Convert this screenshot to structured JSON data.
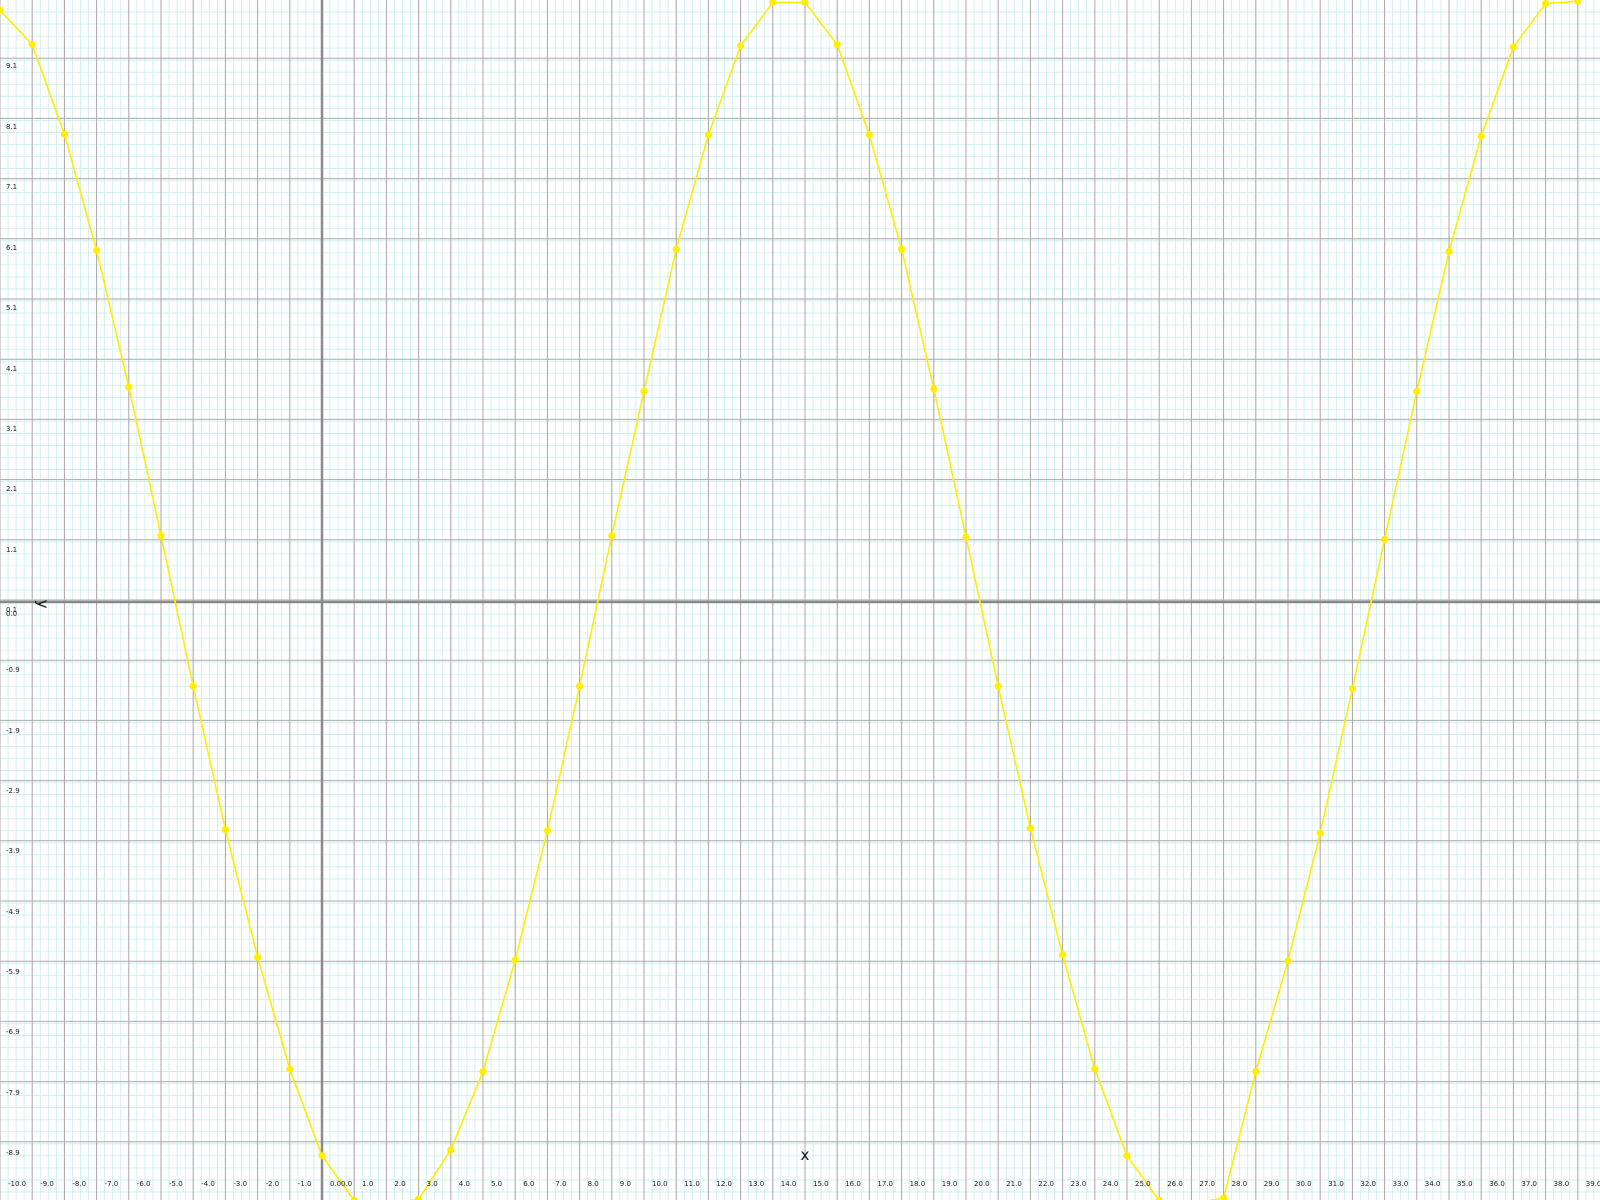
{
  "chart_data": {
    "type": "line",
    "xlabel": "x",
    "ylabel": "y",
    "xlim": [
      -10,
      40
    ],
    "ylim": [
      -10,
      10
    ],
    "grid": true,
    "x_tick_labels": [
      "-10.0",
      "-9.0",
      "-8.0",
      "-7.0",
      "-6.0",
      "-5.0",
      "-4.0",
      "-3.0",
      "-2.0",
      "-1.0",
      "0.0",
      "0.0",
      "1.0",
      "2.0",
      "3.0",
      "4.0",
      "5.0",
      "6.0",
      "7.0",
      "8.0",
      "9.0",
      "10.0",
      "11.0",
      "12.0",
      "13.0",
      "14.0",
      "15.0",
      "16.0",
      "17.0",
      "18.0",
      "19.0",
      "20.0",
      "21.0",
      "22.0",
      "23.0",
      "24.0",
      "25.0",
      "26.0",
      "27.0",
      "28.0",
      "29.0",
      "30.0",
      "31.0",
      "32.0",
      "33.0",
      "34.0",
      "35.0",
      "36.0",
      "37.0",
      "38.0",
      "39.0"
    ],
    "y_tick_labels": [
      "9.1",
      "8.1",
      "7.1",
      "6.1",
      "5.1",
      "4.1",
      "3.1",
      "2.1",
      "1.1",
      "0.1",
      "0.0",
      "-0.9",
      "-1.9",
      "-2.9",
      "-3.9",
      "-4.9",
      "-5.9",
      "-6.9",
      "-7.9",
      "-8.9"
    ],
    "series": [
      {
        "color": "#ffee00",
        "x": [
          -10,
          -9,
          -8,
          -7,
          -6,
          -5,
          -4,
          -3,
          -2,
          -1,
          0,
          1,
          2,
          3,
          4,
          5,
          6,
          7,
          8,
          9,
          10,
          11,
          12,
          13,
          14,
          15,
          16,
          17,
          18,
          19,
          20,
          21,
          22,
          23,
          24,
          25,
          26,
          27,
          28,
          29,
          30,
          31,
          32,
          33,
          34,
          35,
          36,
          37,
          38,
          39
        ],
        "y": [
          9.83,
          9.26,
          7.77,
          5.84,
          3.57,
          1.1,
          -1.4,
          -3.78,
          -5.9,
          -7.76,
          -9.2,
          -9.94,
          -10.0,
          -9.92,
          -9.1,
          -7.8,
          -5.95,
          -3.8,
          -1.4,
          1.1,
          3.5,
          5.86,
          7.76,
          9.24,
          9.96,
          9.96,
          9.26,
          7.76,
          5.86,
          3.54,
          1.08,
          -1.4,
          -3.76,
          -5.86,
          -7.76,
          -9.2,
          -9.94,
          -10.0,
          -9.9,
          -7.8,
          -5.96,
          -3.84,
          -1.44,
          1.04,
          3.5,
          5.82,
          7.74,
          9.22,
          9.94,
          9.98
        ]
      }
    ]
  }
}
